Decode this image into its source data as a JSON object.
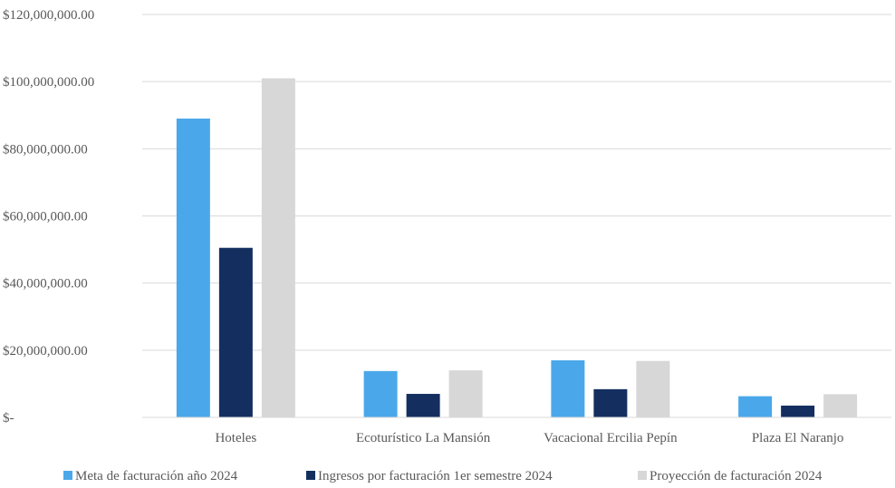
{
  "chart_data": {
    "type": "bar",
    "categories": [
      "Hoteles",
      "Ecoturístico La Mansión",
      "Vacacional Ercilia Pepín",
      "Plaza El Naranjo"
    ],
    "series": [
      {
        "name": "Meta de facturación año 2024",
        "color": "#4aa8ea",
        "values": [
          89000000,
          13800000,
          17000000,
          6300000
        ]
      },
      {
        "name": "Ingresos por facturación 1er semestre 2024",
        "color": "#142f5f",
        "values": [
          50500000,
          7000000,
          8400000,
          3500000
        ]
      },
      {
        "name": "Proyección de facturación 2024",
        "color": "#d7d7d7",
        "values": [
          101000000,
          14000000,
          16800000,
          6900000
        ]
      }
    ],
    "y_ticks": [
      0,
      20000000,
      40000000,
      60000000,
      80000000,
      100000000,
      120000000
    ],
    "y_tick_labels": [
      "$-",
      "$20,000,000.00",
      "$40,000,000.00",
      "$60,000,000.00",
      "$80,000,000.00",
      "$100,000,000.00",
      "$120,000,000.00"
    ],
    "ylim": [
      0,
      120000000
    ],
    "grid": true,
    "gridline_color": "#d9d9d9",
    "legend_position": "bottom",
    "title": "",
    "xlabel": "",
    "ylabel": ""
  }
}
